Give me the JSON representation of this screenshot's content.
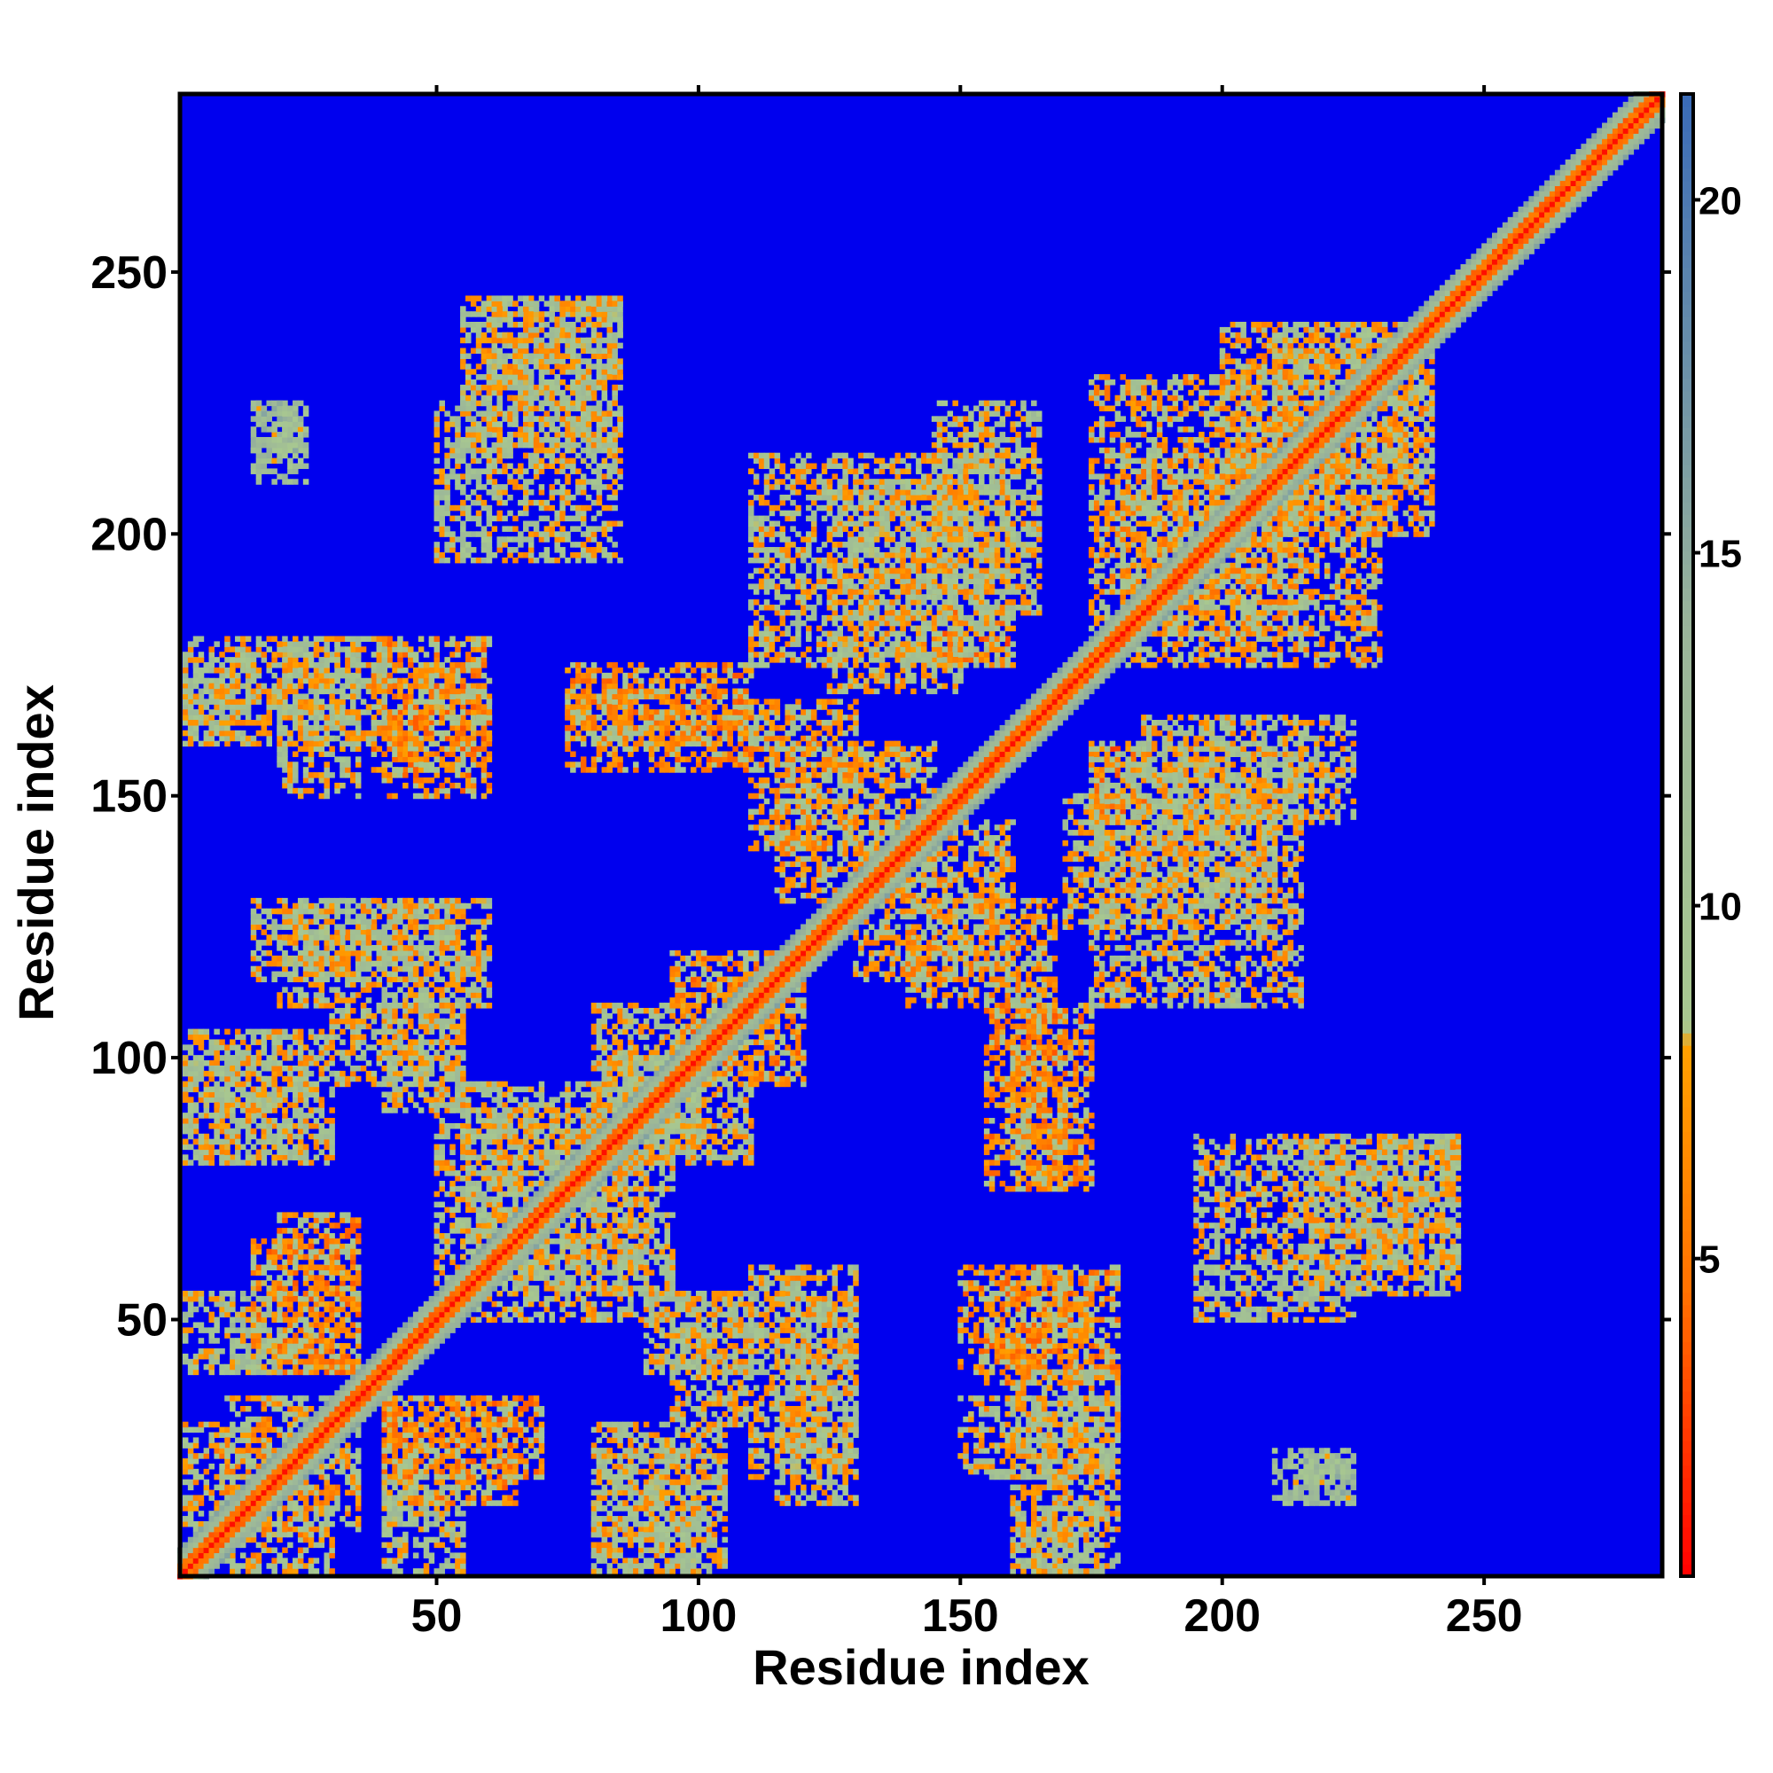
{
  "chart_data": {
    "type": "heatmap",
    "title": "",
    "xlabel": "Residue index",
    "ylabel": "Residue index",
    "xlim": [
      1,
      284
    ],
    "ylim": [
      1,
      284
    ],
    "x_ticks": [
      50,
      100,
      150,
      200,
      250
    ],
    "y_ticks": [
      50,
      100,
      150,
      200,
      250
    ],
    "x_tick_labels": [
      "50",
      "100",
      "150",
      "200",
      "250"
    ],
    "y_tick_labels": [
      "50",
      "100",
      "150",
      "200",
      "250"
    ],
    "background_color": "#0000ee",
    "colorbar": {
      "range": [
        0.5,
        21.5
      ],
      "ticks": [
        5,
        10,
        15,
        20
      ],
      "tick_labels": [
        "5",
        "10",
        "15",
        "20"
      ],
      "stops": [
        {
          "value": 0.5,
          "color": "#ff0000"
        },
        {
          "value": 4.5,
          "color": "#ff7000"
        },
        {
          "value": 8.0,
          "color": "#ffa000"
        },
        {
          "value": 8.3,
          "color": "#a8c890"
        },
        {
          "value": 14.0,
          "color": "#9ab49a"
        },
        {
          "value": 21.5,
          "color": "#3a6bb8"
        }
      ]
    },
    "contact_features": {
      "diagonal_band": {
        "start": 1,
        "end": 284,
        "description_values": "near-diagonal distance < 5"
      },
      "patches": [
        {
          "x": [
            2,
            15
          ],
          "y": [
            164,
            176
          ],
          "value": 10
        },
        {
          "x": [
            20,
            35
          ],
          "y": [
            150,
            180
          ],
          "value": 9
        },
        {
          "x": [
            38,
            60
          ],
          "y": [
            155,
            180
          ],
          "value": 7
        },
        {
          "x": [
            75,
            110
          ],
          "y": [
            160,
            170
          ],
          "value": 8
        },
        {
          "x": [
            110,
            130
          ],
          "y": [
            140,
            168
          ],
          "value": 8
        },
        {
          "x": [
            20,
            60
          ],
          "y": [
            110,
            130
          ],
          "value": 9
        },
        {
          "x": [
            2,
            30
          ],
          "y": [
            80,
            105
          ],
          "value": 9
        },
        {
          "x": [
            40,
            55
          ],
          "y": [
            90,
            110
          ],
          "value": 9
        },
        {
          "x": [
            50,
            90
          ],
          "y": [
            55,
            95
          ],
          "value": 9
        },
        {
          "x": [
            80,
            100
          ],
          "y": [
            80,
            110
          ],
          "value": 9
        },
        {
          "x": [
            100,
            120
          ],
          "y": [
            95,
            115
          ],
          "value": 7
        },
        {
          "x": [
            20,
            35
          ],
          "y": [
            40,
            70
          ],
          "value": 7
        },
        {
          "x": [
            10,
            30
          ],
          "y": [
            2,
            35
          ],
          "value": 8
        },
        {
          "x": [
            40,
            65
          ],
          "y": [
            15,
            35
          ],
          "value": 7
        },
        {
          "x": [
            40,
            55
          ],
          "y": [
            2,
            20
          ],
          "value": 10
        },
        {
          "x": [
            80,
            100
          ],
          "y": [
            2,
            25
          ],
          "value": 9
        },
        {
          "x": [
            95,
            110
          ],
          "y": [
            30,
            55
          ],
          "value": 9
        },
        {
          "x": [
            115,
            130
          ],
          "y": [
            15,
            55
          ],
          "value": 9
        },
        {
          "x": [
            60,
            85
          ],
          "y": [
            195,
            245
          ],
          "value": 9
        },
        {
          "x": [
            15,
            25
          ],
          "y": [
            210,
            225
          ],
          "value": 11
        },
        {
          "x": [
            125,
            150
          ],
          "y": [
            170,
            210
          ],
          "value": 9
        },
        {
          "x": [
            145,
            165
          ],
          "y": [
            185,
            225
          ],
          "value": 9
        },
        {
          "x": [
            145,
            160
          ],
          "y": [
            175,
            185
          ],
          "value": 6
        },
        {
          "x": [
            130,
            160
          ],
          "y": [
            115,
            145
          ],
          "value": 8
        },
        {
          "x": [
            155,
            175
          ],
          "y": [
            75,
            110
          ],
          "value": 7
        },
        {
          "x": [
            150,
            175
          ],
          "y": [
            40,
            60
          ],
          "value": 7
        },
        {
          "x": [
            160,
            180
          ],
          "y": [
            2,
            40
          ],
          "value": 9
        },
        {
          "x": [
            175,
            215
          ],
          "y": [
            110,
            160
          ],
          "value": 9
        },
        {
          "x": [
            180,
            230
          ],
          "y": [
            175,
            215
          ],
          "value": 8
        },
        {
          "x": [
            210,
            240
          ],
          "y": [
            200,
            240
          ],
          "value": 8
        },
        {
          "x": [
            215,
            245
          ],
          "y": [
            55,
            85
          ],
          "value": 9
        },
        {
          "x": [
            195,
            225
          ],
          "y": [
            50,
            60
          ],
          "value": 10
        },
        {
          "x": [
            215,
            225
          ],
          "y": [
            15,
            25
          ],
          "value": 12
        }
      ]
    }
  }
}
